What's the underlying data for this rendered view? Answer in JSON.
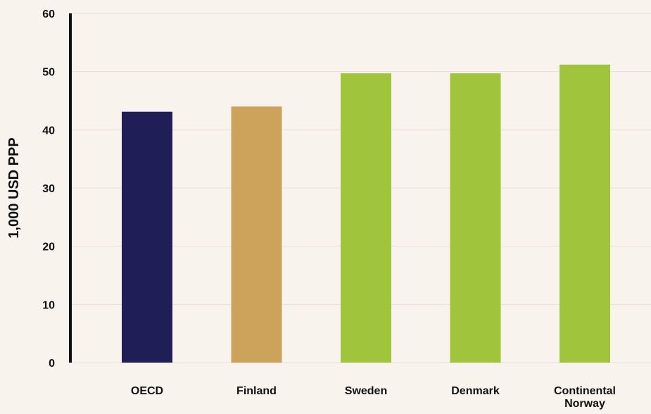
{
  "chart_data": {
    "type": "bar",
    "categories": [
      "OECD",
      "Finland",
      "Sweden",
      "Denmark",
      "Continental Norway"
    ],
    "category_label_lines": [
      [
        "OECD"
      ],
      [
        "Finland"
      ],
      [
        "Sweden"
      ],
      [
        "Denmark"
      ],
      [
        "Continental",
        "Norway"
      ]
    ],
    "values": [
      43.1,
      44.0,
      49.7,
      49.7,
      51.2
    ],
    "colors": [
      "#201e57",
      "#cda25a",
      "#a0c43c",
      "#a0c43c",
      "#a0c43c"
    ],
    "title": "",
    "xlabel": "",
    "ylabel": "1,000 USD PPP",
    "ylim": [
      0,
      60
    ],
    "yticks": [
      0,
      10,
      20,
      30,
      40,
      50,
      60
    ],
    "grid": true,
    "legend": "none"
  }
}
